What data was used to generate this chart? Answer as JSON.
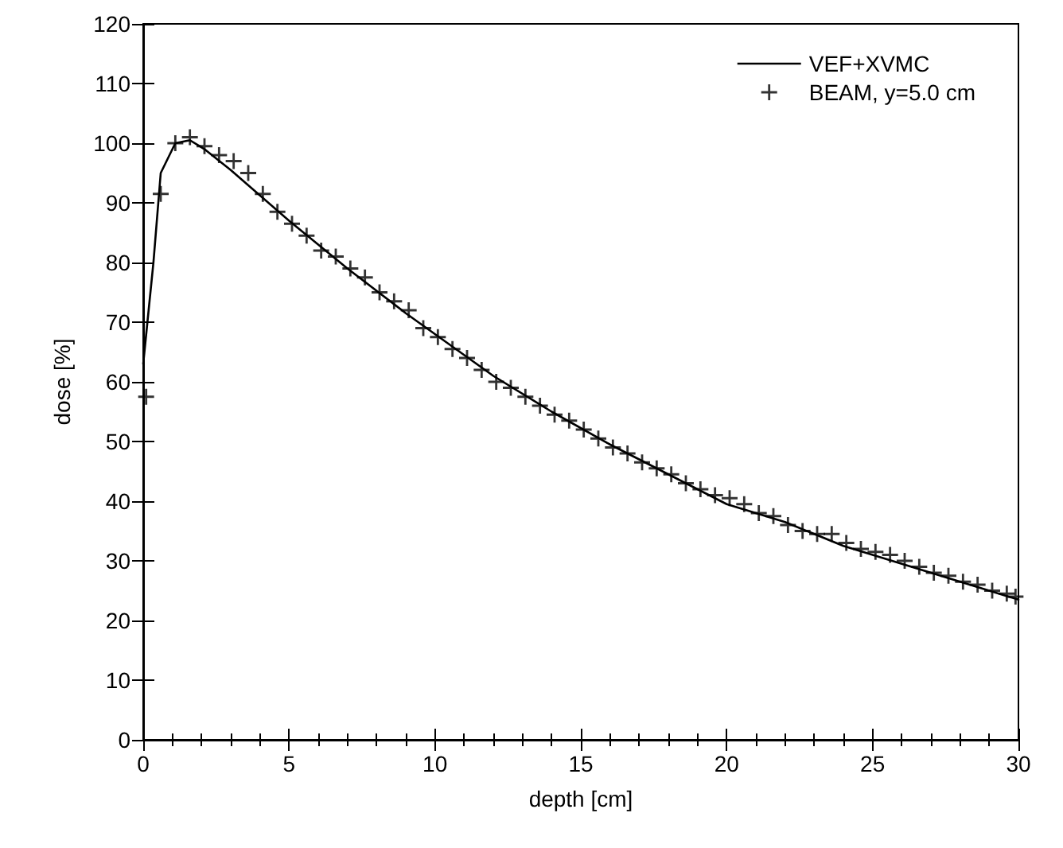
{
  "chart_data": {
    "type": "line",
    "xlabel": "depth [cm]",
    "ylabel": "dose [%]",
    "xlim": [
      0,
      30
    ],
    "xticks": [
      0,
      5,
      10,
      15,
      20,
      25,
      30
    ],
    "ylim": [
      0,
      120
    ],
    "yticks": [
      0,
      10,
      20,
      30,
      40,
      50,
      60,
      70,
      80,
      90,
      100,
      110,
      120
    ],
    "grid": false,
    "legend": "top right",
    "series": [
      {
        "name": "VEF+XVMC",
        "color": "#000000",
        "marker": "none",
        "line_style": "solid",
        "x": [
          0,
          0.35,
          0.6,
          1.1,
          1.6,
          2.1,
          3,
          5,
          7,
          9,
          10,
          12,
          14,
          16,
          18,
          20,
          21,
          22,
          24,
          26,
          28,
          30
        ],
        "values": [
          63,
          80,
          95,
          100,
          100.5,
          99,
          95.5,
          87,
          79,
          71.5,
          68,
          61,
          55,
          49.5,
          44.5,
          39.5,
          38,
          36.5,
          32.5,
          29.5,
          26.5,
          23.5
        ]
      },
      {
        "name": "BEAM, y=5.0 cm",
        "type": "scatter",
        "color": "#000000",
        "marker": "cross",
        "x": [
          0.1,
          0.6,
          1.1,
          1.6,
          2.1,
          2.6,
          3.1,
          3.6,
          4.1,
          4.6,
          5.1,
          5.6,
          6.1,
          6.6,
          7.1,
          7.6,
          8.1,
          8.6,
          9.1,
          9.6,
          10.1,
          10.6,
          11.1,
          11.6,
          12.1,
          12.6,
          13.1,
          13.6,
          14.1,
          14.6,
          15.1,
          15.6,
          16.1,
          16.6,
          17.1,
          17.6,
          18.1,
          18.6,
          19.1,
          19.6,
          20.1,
          20.6,
          21.1,
          21.6,
          22.1,
          22.6,
          23.1,
          23.6,
          24.1,
          24.6,
          25.1,
          25.6,
          26.1,
          26.6,
          27.1,
          27.6,
          28.1,
          28.6,
          29.1,
          29.6,
          29.9
        ],
        "values": [
          57.5,
          91.5,
          100,
          101,
          99.5,
          98,
          97,
          95,
          91.5,
          88.5,
          86.5,
          84.5,
          82,
          81,
          79,
          77.5,
          75,
          73.5,
          72,
          69,
          67.5,
          65.5,
          64,
          62,
          60,
          59,
          57.5,
          56,
          54.5,
          53.5,
          52,
          50.5,
          49,
          48,
          46.5,
          45.5,
          44.5,
          43,
          42,
          41,
          40.5,
          39.5,
          38,
          37.5,
          36,
          35,
          34.5,
          34.5,
          33,
          32,
          31.5,
          31,
          30,
          29,
          28,
          27.5,
          26.5,
          26,
          25,
          24.5,
          24
        ]
      }
    ]
  }
}
